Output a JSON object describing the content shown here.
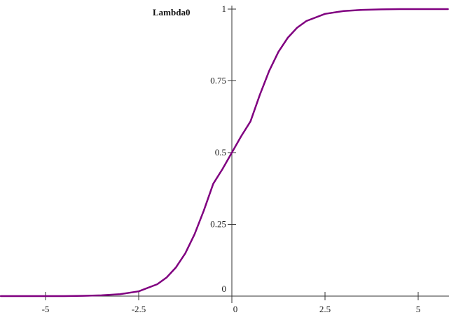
{
  "chart_data": {
    "type": "line",
    "title": "",
    "xlabel": "",
    "ylabel": "Lambda0",
    "xlim": [
      -6.2,
      5.8
    ],
    "ylim": [
      0,
      1.0
    ],
    "grid": false,
    "x_ticks": [
      -5,
      -2.5,
      0,
      2.5,
      5
    ],
    "x_tick_labels": [
      "-5",
      "-2.5",
      "0",
      "2.5",
      "5"
    ],
    "y_ticks": [
      0,
      0.25,
      0.5,
      0.75,
      1
    ],
    "y_tick_labels": [
      "0",
      "0.25",
      "0.5",
      "0.75",
      "1"
    ],
    "series": [
      {
        "color": "#800080",
        "x": [
          -6.2,
          -6,
          -5.5,
          -5,
          -4.5,
          -4,
          -3.5,
          -3,
          -2.5,
          -2,
          -1.75,
          -1.5,
          -1.25,
          -1,
          -0.75,
          -0.5,
          -0.25,
          0,
          0.25,
          0.5,
          0.75,
          1,
          1.25,
          1.5,
          1.75,
          2,
          2.5,
          3,
          3.5,
          4,
          4.5,
          5,
          5.5,
          5.8
        ],
        "y": [
          0.0,
          0.0,
          0.0,
          0.0,
          0.0001,
          0.0008,
          0.0026,
          0.0067,
          0.0166,
          0.0415,
          0.065,
          0.1,
          0.149,
          0.2158,
          0.299,
          0.3914,
          0.443,
          0.5,
          0.557,
          0.6086,
          0.701,
          0.7842,
          0.851,
          0.9,
          0.935,
          0.9585,
          0.9834,
          0.9933,
          0.9974,
          0.9992,
          0.9999,
          1.0,
          1.0,
          1.0
        ]
      }
    ]
  }
}
